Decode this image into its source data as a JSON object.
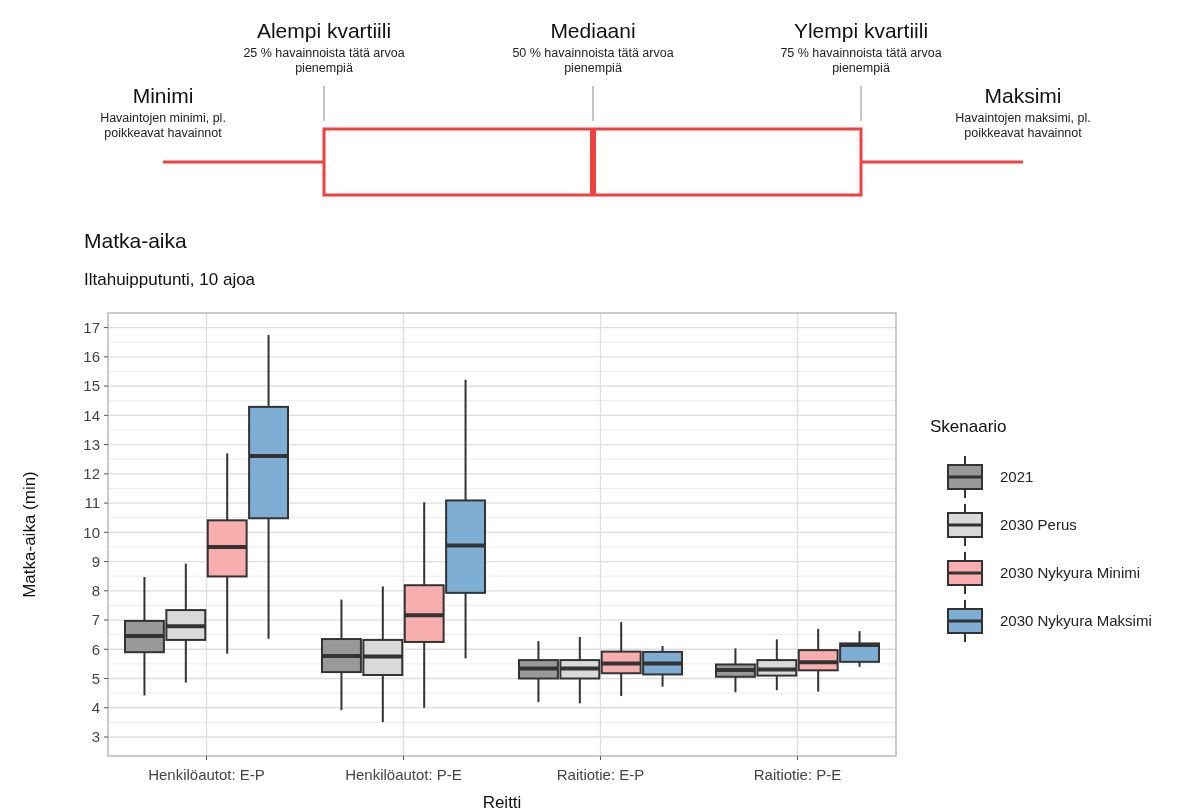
{
  "chart_data": {
    "type": "box",
    "title": "Matka-aika",
    "subtitle": "Iltahuipputunti, 10 ajoa",
    "xlabel": "Reitti",
    "ylabel": "Matka-aika (min)",
    "legend_title": "Skenaario",
    "legend": "right",
    "grid": true,
    "categories": [
      "Henkilöautot: E-P",
      "Henkilöautot: P-E",
      "Raitiotie: E-P",
      "Raitiotie: P-E"
    ],
    "ylim": [
      2.35,
      17.5
    ],
    "yticks": [
      3,
      4,
      5,
      6,
      7,
      8,
      9,
      10,
      11,
      12,
      13,
      14,
      15,
      16,
      17
    ],
    "series": [
      {
        "name": "2021",
        "color": "#999999",
        "boxes": [
          {
            "low": 4.42,
            "q1": 5.9,
            "median": 6.45,
            "q3": 6.97,
            "high": 8.47
          },
          {
            "low": 3.92,
            "q1": 5.22,
            "median": 5.77,
            "q3": 6.35,
            "high": 7.7
          },
          {
            "low": 4.19,
            "q1": 5.0,
            "median": 5.34,
            "q3": 5.63,
            "high": 6.28
          },
          {
            "low": 4.53,
            "q1": 5.06,
            "median": 5.29,
            "q3": 5.48,
            "high": 6.03
          }
        ]
      },
      {
        "name": "2030 Perus",
        "color": "#d9d9d9",
        "boxes": [
          {
            "low": 4.86,
            "q1": 6.32,
            "median": 6.79,
            "q3": 7.34,
            "high": 8.93
          },
          {
            "low": 3.51,
            "q1": 5.12,
            "median": 5.75,
            "q3": 6.32,
            "high": 8.15
          },
          {
            "low": 4.15,
            "q1": 5.0,
            "median": 5.34,
            "q3": 5.63,
            "high": 6.42
          },
          {
            "low": 4.6,
            "q1": 5.1,
            "median": 5.31,
            "q3": 5.63,
            "high": 6.34
          }
        ]
      },
      {
        "name": "2030 Nykyura Minimi",
        "color": "#f8aeae",
        "boxes": [
          {
            "low": 5.85,
            "q1": 8.49,
            "median": 9.5,
            "q3": 10.41,
            "high": 12.7
          },
          {
            "low": 4.0,
            "q1": 6.25,
            "median": 7.16,
            "q3": 8.19,
            "high": 11.03
          },
          {
            "low": 4.4,
            "q1": 5.18,
            "median": 5.51,
            "q3": 5.92,
            "high": 6.93
          },
          {
            "low": 4.55,
            "q1": 5.28,
            "median": 5.56,
            "q3": 5.97,
            "high": 6.7
          }
        ]
      },
      {
        "name": "2030 Nykyura Maksimi",
        "color": "#7eaed3",
        "boxes": [
          {
            "low": 6.36,
            "q1": 10.48,
            "median": 12.61,
            "q3": 14.29,
            "high": 16.75
          },
          {
            "low": 5.69,
            "q1": 7.93,
            "median": 9.55,
            "q3": 11.09,
            "high": 15.22
          },
          {
            "low": 4.72,
            "q1": 5.14,
            "median": 5.51,
            "q3": 5.91,
            "high": 6.11
          },
          {
            "low": 5.4,
            "q1": 5.57,
            "median": 6.15,
            "q3": 6.2,
            "high": 6.62
          }
        ]
      }
    ],
    "annotations": [
      "Minimi",
      "Havaintojen minimi, pl. poikkeavat havainnot",
      "Alempi kvartiili",
      "25 % havainnoista tätä arvoa pienempiä",
      "Mediaani",
      "50 % havainnoista tätä arvoa pienempiä",
      "Ylempi kvartiili",
      "75 % havainnoista tätä arvoa pienempiä",
      "Maksimi",
      "Havaintojen maksimi, pl. poikkeavat havainnot"
    ]
  }
}
